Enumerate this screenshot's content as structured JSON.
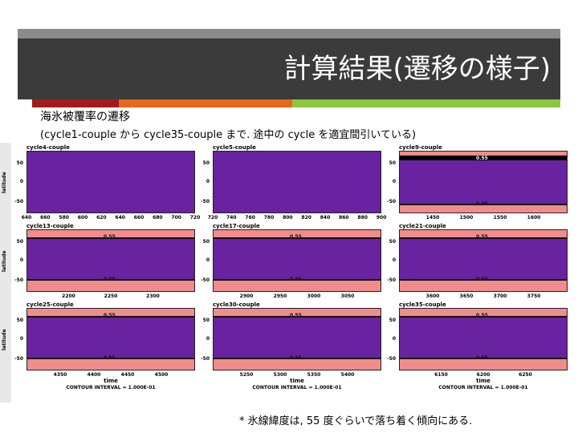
{
  "title": "計算結果(遷移の様子)",
  "subtitle_line1": "海氷被覆率の遷移",
  "subtitle_line2": "(cycle1-couple から cycle35-couple まで. 途中の cycle を適宜間引いている)",
  "footnote": "* 氷線緯度は, 55 度ぐらいで落ち着く傾向にある.",
  "accent_colors": [
    "#a21a1a",
    "#e8671a",
    "#8cc63f"
  ],
  "ylabel": "latitude",
  "xlabel": "time",
  "contour_interval": "CONTOUR INTERVAL = 1.000E-01",
  "ytick_labels": [
    "50",
    "0",
    "-50"
  ],
  "contour_label": "0.55",
  "panels": [
    {
      "title": "cycle4-couple",
      "xticks": [
        "640",
        "660",
        "580",
        "600",
        "620",
        "640",
        "660",
        "680",
        "700",
        "720"
      ]
    },
    {
      "title": "cycle5-couple",
      "xticks": [
        "720",
        "740",
        "760",
        "780",
        "800",
        "820",
        "840",
        "860",
        "880",
        "900"
      ]
    },
    {
      "title": "cycle9-couple",
      "xticks": [
        "1450",
        "1500",
        "1550",
        "1600"
      ]
    },
    {
      "title": "cycle13-couple",
      "xticks": [
        "2200",
        "2250",
        "2300"
      ]
    },
    {
      "title": "cycle17-couple",
      "xticks": [
        "2900",
        "2950",
        "3000",
        "3050"
      ]
    },
    {
      "title": "cycle21-couple",
      "xticks": [
        "3600",
        "3650",
        "3700",
        "3750"
      ]
    },
    {
      "title": "cycle25-couple",
      "xticks": [
        "4350",
        "4400",
        "4450",
        "4500"
      ]
    },
    {
      "title": "cycle30-couple",
      "xticks": [
        "5250",
        "5300",
        "5350",
        "5400"
      ]
    },
    {
      "title": "cycle35-couple",
      "xticks": [
        "6150",
        "6200",
        "6250"
      ]
    }
  ]
}
